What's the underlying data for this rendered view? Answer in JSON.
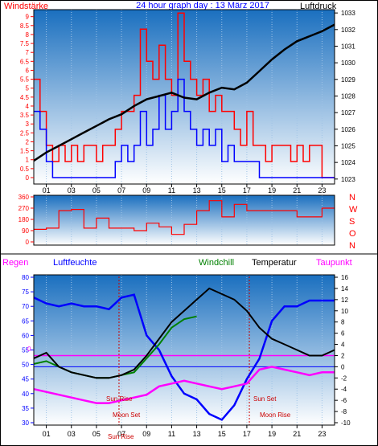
{
  "header": {
    "left_label": "Windstärke",
    "center_label": "24 hour graph day : 13 März 2017",
    "right_label": "Luftdruck"
  },
  "compass": [
    "N",
    "W",
    "S",
    "O",
    "N"
  ],
  "legend2": {
    "regen": "Regen",
    "luftfeuchte": "Luftfeuchte",
    "windchill": "Windchill",
    "temperatur": "Temperatur",
    "taupunkt": "Taupunkt"
  },
  "annotations": {
    "sun_rise": "Sun Rise",
    "sun_set": "Sun Set",
    "moon_set": "Moon Set",
    "moon_rise": "Moon Rise",
    "sun_rise_bottom": "Sun Rise",
    "zero_marker": "0"
  },
  "colors": {
    "red": "#ff0000",
    "blue": "#0000ff",
    "black": "#000000",
    "green": "#008000",
    "magenta": "#ff00ff",
    "panel_top": "#1a6fbf",
    "panel_bottom": "#ffffff"
  },
  "chart_data": [
    {
      "type": "line",
      "x_ticks": [
        "01",
        "03",
        "05",
        "07",
        "09",
        "11",
        "13",
        "15",
        "17",
        "19",
        "21",
        "23"
      ],
      "y_left_ticks": [
        "0",
        "0.5",
        "1",
        "1.5",
        "2",
        "2.5",
        "3",
        "3.5",
        "4",
        "4.5",
        "5",
        "5.5",
        "6",
        "6.5",
        "7",
        "7.5",
        "8",
        "8.5",
        "9"
      ],
      "y_right_ticks": [
        "1033",
        "1032",
        "1031",
        "1030",
        "1029",
        "1028",
        "1027",
        "1026",
        "1025",
        "1024",
        "1023"
      ],
      "ylim_left": [
        0,
        9.3
      ],
      "ylim_right": [
        1022.7,
        1033.2
      ],
      "series": [
        {
          "key": "pressure",
          "axis": "right",
          "x": [
            0,
            1,
            2,
            3,
            4,
            5,
            6,
            7,
            8,
            9,
            10,
            11,
            12,
            13,
            14,
            15,
            16,
            17,
            18,
            19,
            20,
            21,
            22,
            23,
            24
          ],
          "values": [
            1024.1,
            1024.6,
            1025.0,
            1025.4,
            1025.8,
            1026.2,
            1026.6,
            1026.9,
            1027.4,
            1027.8,
            1028.0,
            1028.2,
            1027.9,
            1027.8,
            1028.2,
            1028.5,
            1028.4,
            1028.8,
            1029.5,
            1030.2,
            1030.8,
            1031.3,
            1031.6,
            1031.9,
            1032.3
          ]
        },
        {
          "key": "gust",
          "axis": "left",
          "x": [
            0,
            0.5,
            1,
            1.5,
            2,
            2.5,
            3,
            3.5,
            4,
            4.5,
            5,
            5.5,
            6,
            6.5,
            7,
            7.5,
            8,
            8.5,
            9,
            9.5,
            10,
            10.5,
            11,
            11.5,
            12,
            12.5,
            13,
            13.5,
            14,
            14.5,
            15,
            15.5,
            16,
            16.5,
            17,
            17.5,
            18,
            18.5,
            19,
            19.5,
            20,
            20.5,
            21,
            21.5,
            22,
            22.5,
            23,
            23.5,
            24
          ],
          "values": [
            5.5,
            3.7,
            1.8,
            0.9,
            1.8,
            0.9,
            1.8,
            0.9,
            1.8,
            1.8,
            0.9,
            1.8,
            1.8,
            2.7,
            3.7,
            3.7,
            4.6,
            8.3,
            6.5,
            5.5,
            7.4,
            5.5,
            4.6,
            9.2,
            6.5,
            5.5,
            4.6,
            5.5,
            3.7,
            4.6,
            3.7,
            3.7,
            2.7,
            1.8,
            3.7,
            1.8,
            1.8,
            0.9,
            1.8,
            1.8,
            1.8,
            0.9,
            1.8,
            0.9,
            1.8,
            1.8,
            0,
            0,
            0
          ]
        },
        {
          "key": "wind",
          "axis": "left",
          "x": [
            0,
            0.5,
            1,
            1.5,
            2,
            2.5,
            3,
            3.5,
            4,
            4.5,
            5,
            5.5,
            6,
            6.5,
            7,
            7.5,
            8,
            8.5,
            9,
            9.5,
            10,
            10.5,
            11,
            11.5,
            12,
            12.5,
            13,
            13.5,
            14,
            14.5,
            15,
            15.5,
            16,
            16.5,
            17,
            17.5,
            18,
            18.5,
            19,
            19.5,
            20,
            20.5,
            21,
            21.5,
            22,
            22.5,
            23,
            23.5,
            24
          ],
          "values": [
            3.7,
            2.7,
            0.9,
            0,
            0,
            0,
            0,
            0,
            0,
            0,
            0,
            0,
            0,
            0.9,
            1.8,
            0.9,
            1.8,
            3.7,
            1.8,
            2.7,
            4.6,
            2.7,
            3.7,
            5.5,
            3.7,
            2.7,
            1.8,
            2.7,
            1.8,
            2.7,
            0.9,
            1.8,
            0.9,
            0.9,
            0.9,
            0.9,
            0,
            0,
            0,
            0,
            0,
            0,
            0,
            0,
            0,
            0,
            0,
            0,
            0
          ]
        }
      ]
    },
    {
      "type": "line",
      "x_ticks": [
        "01",
        "03",
        "05",
        "07",
        "09",
        "11",
        "13",
        "15",
        "17",
        "19",
        "21",
        "23"
      ],
      "y_ticks": [
        "360",
        "270",
        "180",
        "90",
        "0"
      ],
      "ylim": [
        0,
        360
      ],
      "series": [
        {
          "key": "direction",
          "x": [
            0,
            1,
            2,
            3,
            4,
            5,
            6,
            7,
            8,
            9,
            10,
            11,
            12,
            13,
            14,
            15,
            16,
            17,
            18,
            19,
            20,
            21,
            22,
            23,
            24
          ],
          "values": [
            100,
            110,
            250,
            260,
            110,
            190,
            110,
            110,
            90,
            150,
            120,
            60,
            140,
            250,
            330,
            200,
            300,
            250,
            250,
            250,
            250,
            200,
            200,
            270,
            270
          ]
        }
      ]
    },
    {
      "type": "line",
      "x_ticks": [
        "01",
        "03",
        "05",
        "07",
        "09",
        "11",
        "13",
        "15",
        "17",
        "19",
        "21",
        "23"
      ],
      "y_left_ticks": [
        "80",
        "75",
        "70",
        "65",
        "60",
        "55",
        "50",
        "45",
        "40",
        "35",
        "30"
      ],
      "y_right_ticks": [
        "16",
        "14",
        "12",
        "10",
        "8",
        "6",
        "4",
        "2",
        "0",
        "-2",
        "-4",
        "-6",
        "-8",
        "-10"
      ],
      "ylim_left": [
        30,
        80
      ],
      "ylim_right": [
        -10,
        16
      ],
      "series": [
        {
          "key": "humidity",
          "axis": "left",
          "x": [
            0,
            1,
            2,
            3,
            4,
            5,
            6,
            7,
            8,
            9,
            10,
            11,
            12,
            13,
            14,
            15,
            16,
            17,
            18,
            19,
            20,
            21,
            22,
            23,
            24
          ],
          "values": [
            73,
            71,
            70,
            71,
            70,
            70,
            69,
            73,
            74,
            60,
            55,
            46,
            40,
            38,
            33,
            31,
            36,
            45,
            52,
            65,
            70,
            70,
            72,
            72,
            72
          ]
        },
        {
          "key": "temperature",
          "axis": "right",
          "x": [
            0,
            1,
            2,
            3,
            4,
            5,
            6,
            7,
            8,
            9,
            10,
            11,
            12,
            13,
            14,
            15,
            16,
            17,
            18,
            19,
            20,
            21,
            22,
            23,
            24
          ],
          "values": [
            1.5,
            2.5,
            0,
            -1,
            -1.5,
            -2,
            -2,
            -1.5,
            -0.5,
            2,
            5,
            8,
            10,
            12,
            14,
            13,
            12,
            10,
            7,
            5,
            4,
            3,
            2,
            2,
            3
          ]
        },
        {
          "key": "windchill",
          "axis": "right",
          "x": [
            0,
            1,
            2,
            3,
            4,
            5,
            6,
            7,
            8,
            9,
            10,
            11,
            12,
            13
          ],
          "values": [
            0.5,
            1,
            0,
            -1,
            -1.5,
            -2,
            -2,
            -1.5,
            -1,
            1.5,
            4,
            7,
            8.5,
            9
          ]
        },
        {
          "key": "dewpoint",
          "axis": "right",
          "x": [
            0,
            1,
            2,
            3,
            4,
            5,
            6,
            7,
            8,
            9,
            10,
            11,
            12,
            13,
            14,
            15,
            16,
            17,
            18,
            19,
            20,
            21,
            22,
            23,
            24
          ],
          "values": [
            -4,
            -4.5,
            -5,
            -5.5,
            -6,
            -6.5,
            -6.5,
            -6,
            -5.5,
            -5,
            -3.5,
            -3,
            -2.5,
            -3,
            -3.5,
            -4,
            -3.5,
            -3,
            -0.5,
            0,
            -0.5,
            -1,
            -1.5,
            -1,
            -1
          ]
        }
      ],
      "zero_line_value": 2,
      "rain_value": 0
    }
  ]
}
